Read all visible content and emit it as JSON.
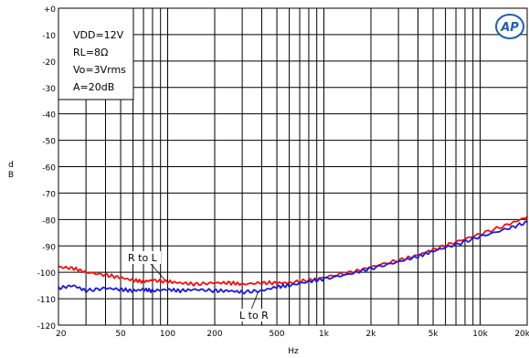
{
  "chart_data": {
    "type": "line",
    "title": "",
    "xlabel": "Hz",
    "ylabel": "d\nB",
    "xscale": "log",
    "xlim": [
      20,
      20000
    ],
    "ylim": [
      -120,
      0
    ],
    "grid": true,
    "x_ticks": [
      20,
      50,
      100,
      200,
      500,
      1000,
      2000,
      5000,
      10000,
      20000
    ],
    "x_tick_labels": [
      "20",
      "50",
      "100",
      "200",
      "500",
      "1k",
      "2k",
      "5k",
      "10k",
      "20k"
    ],
    "y_ticks": [
      0,
      -10,
      -20,
      -30,
      -40,
      -50,
      -60,
      -70,
      -80,
      -90,
      -100,
      -110,
      -120
    ],
    "y_tick_labels": [
      "+0",
      "-10",
      "-20",
      "-30",
      "-40",
      "-50",
      "-60",
      "-70",
      "-80",
      "-90",
      "-100",
      "-110",
      "-120"
    ],
    "conditions": [
      "VDD=12V",
      "RL=8Ω",
      "Vo=3Vrms",
      "A=20dB"
    ],
    "logo_text": "AP",
    "annotations": [
      {
        "text": "R to L",
        "x": 80,
        "y": -104.5
      },
      {
        "text": "L to R",
        "x": 360,
        "y": -106.5
      }
    ],
    "series": [
      {
        "name": "R to L",
        "color": "#ee1111",
        "x": [
          20,
          25,
          30,
          40,
          50,
          60,
          70,
          80,
          100,
          120,
          150,
          200,
          250,
          300,
          400,
          500,
          600,
          800,
          1000,
          1500,
          2000,
          3000,
          4000,
          5000,
          7000,
          10000,
          15000,
          20000
        ],
        "y": [
          -98,
          -98.5,
          -100,
          -101,
          -102,
          -103,
          -103.5,
          -103,
          -103.5,
          -104,
          -104.5,
          -104,
          -104,
          -104.5,
          -104,
          -104,
          -104,
          -103,
          -102,
          -100,
          -98,
          -95.5,
          -93.5,
          -91.5,
          -88.5,
          -85.5,
          -82,
          -79
        ]
      },
      {
        "name": "L to R",
        "color": "#1a1adc",
        "x": [
          20,
          25,
          30,
          40,
          50,
          60,
          70,
          80,
          100,
          120,
          150,
          200,
          250,
          300,
          400,
          500,
          600,
          800,
          1000,
          1500,
          2000,
          3000,
          4000,
          5000,
          7000,
          10000,
          15000,
          20000
        ],
        "y": [
          -106,
          -105,
          -107,
          -106,
          -106.5,
          -107,
          -106.5,
          -107,
          -106.5,
          -107,
          -106.5,
          -107,
          -107,
          -107.5,
          -107,
          -105.5,
          -105,
          -103.5,
          -102.5,
          -100.5,
          -98.5,
          -96,
          -94,
          -92,
          -89.5,
          -86.5,
          -83.5,
          -81
        ]
      }
    ]
  }
}
